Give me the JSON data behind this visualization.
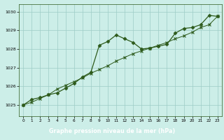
{
  "series1_x": [
    0,
    1,
    2,
    3,
    4,
    5,
    6,
    7,
    8,
    9,
    10,
    11,
    12,
    13,
    14,
    15,
    16,
    17,
    18,
    19,
    20,
    21,
    22,
    23
  ],
  "series1_y": [
    1025.0,
    1025.3,
    1025.4,
    1025.55,
    1025.65,
    1025.9,
    1026.15,
    1026.5,
    1026.75,
    1028.2,
    1028.4,
    1028.75,
    1028.55,
    1028.35,
    1028.0,
    1028.05,
    1028.15,
    1028.25,
    1028.85,
    1029.1,
    1029.15,
    1029.3,
    1029.8,
    1029.75
  ],
  "series2_x": [
    0,
    1,
    2,
    3,
    4,
    5,
    6,
    7,
    8,
    9,
    10,
    11,
    12,
    13,
    14,
    15,
    16,
    17,
    18,
    19,
    20,
    21,
    22,
    23
  ],
  "series2_y": [
    1025.0,
    1025.15,
    1025.35,
    1025.55,
    1025.85,
    1026.05,
    1026.25,
    1026.45,
    1026.7,
    1026.9,
    1027.1,
    1027.35,
    1027.55,
    1027.75,
    1027.9,
    1028.05,
    1028.2,
    1028.35,
    1028.55,
    1028.7,
    1028.9,
    1029.15,
    1029.3,
    1029.75
  ],
  "line_color": "#2d5a1b",
  "bg_color": "#cceee8",
  "grid_color": "#9dccc6",
  "xlabel": "Graphe pression niveau de la mer (hPa)",
  "xlabel_bg": "#2d5a1b",
  "xlabel_fg": "#ffffff",
  "ylim": [
    1024.4,
    1030.4
  ],
  "yticks": [
    1025,
    1026,
    1027,
    1028,
    1029,
    1030
  ],
  "xticks": [
    0,
    1,
    2,
    3,
    4,
    5,
    6,
    7,
    8,
    9,
    10,
    11,
    12,
    13,
    14,
    15,
    16,
    17,
    18,
    19,
    20,
    21,
    22,
    23
  ]
}
